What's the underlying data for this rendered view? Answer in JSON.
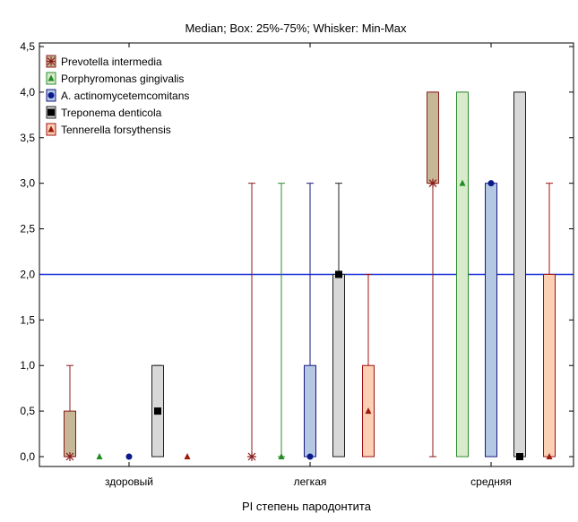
{
  "chart_data": {
    "type": "box",
    "title": "Median; Box: 25%-75%; Whisker: Min-Max",
    "xlabel": "PI степень пародонтита",
    "ylabel": "",
    "categories": [
      "здоровый",
      "легкая",
      "средняя"
    ],
    "ylim": [
      0,
      4.5
    ],
    "y_ticks": [
      "0,0",
      "0,5",
      "1,0",
      "1,5",
      "2,0",
      "2,5",
      "3,0",
      "3,5",
      "4,0",
      "4,5"
    ],
    "reference_line": {
      "y": 2.0,
      "color": "#1a2fd6"
    },
    "grid": false,
    "legend_position": "top-left",
    "series": [
      {
        "name": "Prevotella intermedia",
        "marker": "star",
        "box_color": "#c6b896",
        "edge_color": "#8b1a1a",
        "marker_color": "#8b1a1a",
        "stats": [
          {
            "min": 0,
            "q1": 0,
            "median": 0,
            "q3": 0.5,
            "max": 1.0
          },
          {
            "min": 0,
            "q1": 0,
            "median": 0,
            "q3": 0,
            "max": 3.0
          },
          {
            "min": 0,
            "q1": 3.0,
            "median": 3.0,
            "q3": 4.0,
            "max": 4.0
          }
        ]
      },
      {
        "name": "Porphyromonas gingivalis",
        "marker": "triangle",
        "box_color": "#d8eccb",
        "edge_color": "#2e8b2e",
        "marker_color": "#1e8c1e",
        "stats": [
          {
            "min": 0,
            "q1": 0,
            "median": 0,
            "q3": 0,
            "max": 0
          },
          {
            "min": 0,
            "q1": 0,
            "median": 0,
            "q3": 0,
            "max": 3.0
          },
          {
            "min": 0,
            "q1": 0,
            "median": 3.0,
            "q3": 4.0,
            "max": 4.0
          }
        ]
      },
      {
        "name": "A. actinomycetemcomitans",
        "marker": "circle",
        "box_color": "#b4c8e4",
        "edge_color": "#1a1a80",
        "marker_color": "#0a1a8c",
        "stats": [
          {
            "min": 0,
            "q1": 0,
            "median": 0,
            "q3": 0,
            "max": 0
          },
          {
            "min": 0,
            "q1": 0,
            "median": 0,
            "q3": 1.0,
            "max": 3.0
          },
          {
            "min": 0,
            "q1": 0,
            "median": 3.0,
            "q3": 3.0,
            "max": 3.0
          }
        ]
      },
      {
        "name": "Treponema denticola",
        "marker": "square",
        "box_color": "#d8d8d8",
        "edge_color": "#202020",
        "marker_color": "#000000",
        "stats": [
          {
            "min": 0,
            "q1": 0,
            "median": 0.5,
            "q3": 1.0,
            "max": 1.0
          },
          {
            "min": 0,
            "q1": 0,
            "median": 2.0,
            "q3": 2.0,
            "max": 3.0
          },
          {
            "min": 0,
            "q1": 0,
            "median": 0,
            "q3": 4.0,
            "max": 4.0
          }
        ]
      },
      {
        "name": "Tennerella forsythensis",
        "marker": "triangle",
        "box_color": "#fbd0b5",
        "edge_color": "#a01010",
        "marker_color": "#9c1a0a",
        "stats": [
          {
            "min": 0,
            "q1": 0,
            "median": 0,
            "q3": 0,
            "max": 0
          },
          {
            "min": 0,
            "q1": 0,
            "median": 0.5,
            "q3": 1.0,
            "max": 2.0
          },
          {
            "min": 0,
            "q1": 0,
            "median": 0,
            "q3": 2.0,
            "max": 3.0
          }
        ]
      }
    ]
  }
}
